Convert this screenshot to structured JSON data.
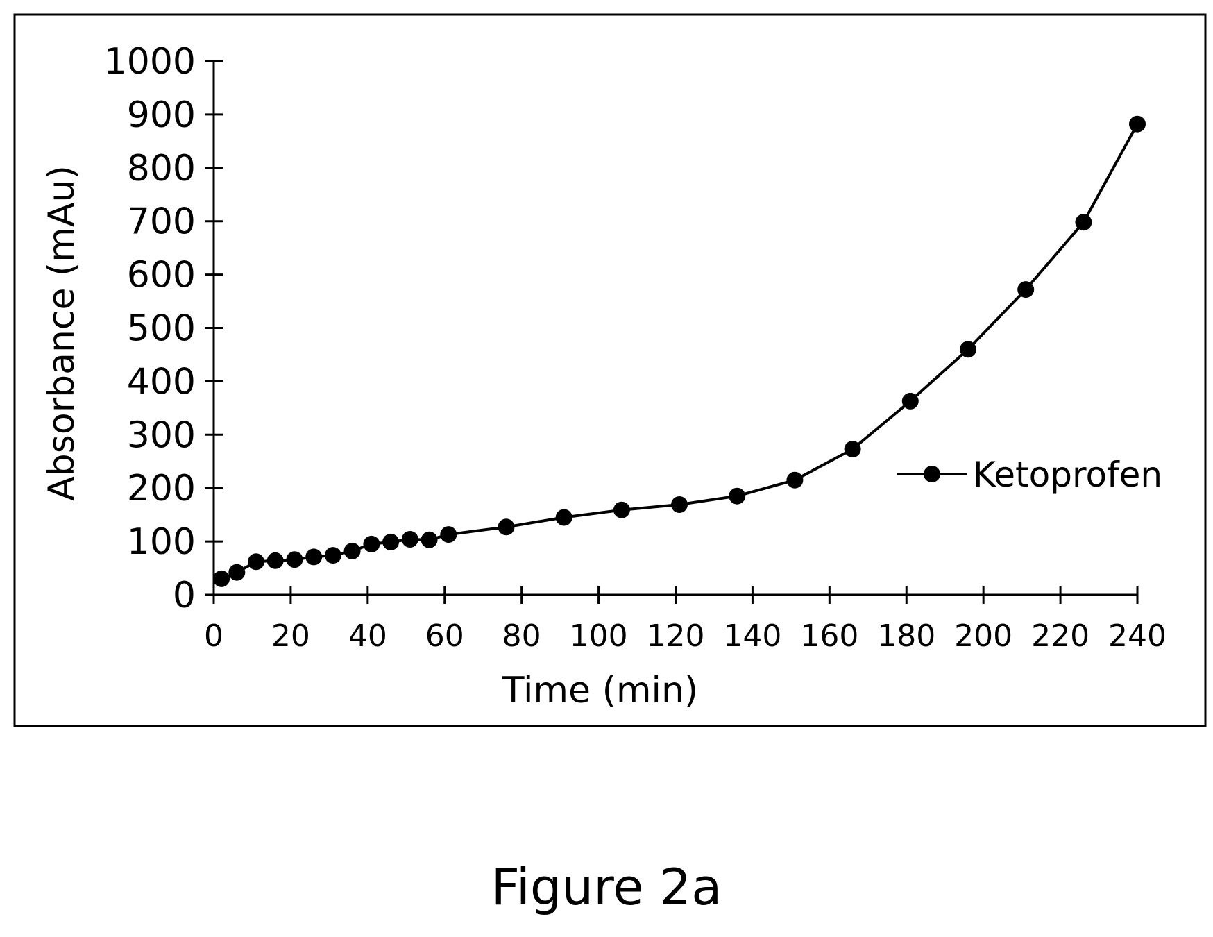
{
  "figure": {
    "caption": "Figure 2a"
  },
  "chart_data": {
    "type": "line",
    "title": "",
    "xlabel": "Time (min)",
    "ylabel": "Absorbance (mAu)",
    "xlim": [
      0,
      240
    ],
    "ylim": [
      0,
      1000
    ],
    "x_ticks": [
      0,
      20,
      40,
      60,
      80,
      100,
      120,
      140,
      160,
      180,
      200,
      220,
      240
    ],
    "y_ticks": [
      0,
      100,
      200,
      300,
      400,
      500,
      600,
      700,
      800,
      900,
      1000
    ],
    "x_tick_labels": [
      "0",
      "20",
      "40",
      "60",
      "80",
      "100",
      "120",
      "140",
      "160",
      "180",
      "200",
      "220",
      "240"
    ],
    "y_tick_labels": [
      "0",
      "100",
      "200",
      "300",
      "400",
      "500",
      "600",
      "700",
      "800",
      "900",
      "1000"
    ],
    "grid": false,
    "legend_position": "right",
    "colors": {
      "series": "#000000",
      "frame": "#000000",
      "background": "#ffffff"
    },
    "series": [
      {
        "name": "Ketoprofen",
        "marker": "circle",
        "x": [
          2,
          6,
          11,
          16,
          21,
          26,
          31,
          36,
          41,
          46,
          51,
          56,
          61,
          76,
          91,
          106,
          121,
          136,
          151,
          166,
          181,
          196,
          211,
          226,
          240
        ],
        "y": [
          30,
          42,
          62,
          64,
          66,
          71,
          74,
          82,
          95,
          99,
          104,
          103,
          113,
          127,
          145,
          159,
          169,
          185,
          215,
          273,
          363,
          460,
          572,
          698,
          882
        ]
      }
    ]
  }
}
